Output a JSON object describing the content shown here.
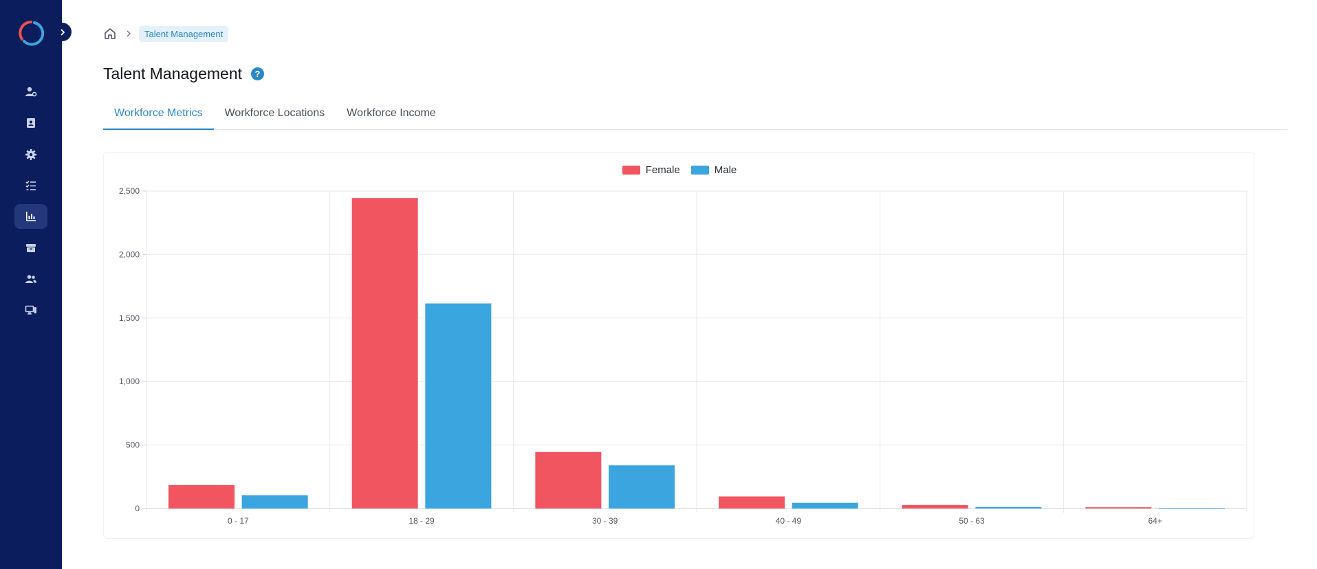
{
  "sidebar": {
    "logo": "logo-ring",
    "expand_icon": "chevron-right-icon",
    "items": [
      {
        "icon": "user-gear-icon",
        "active": false
      },
      {
        "icon": "contact-book-icon",
        "active": false
      },
      {
        "icon": "gear-icon",
        "active": false
      },
      {
        "icon": "checklist-icon",
        "active": false
      },
      {
        "icon": "bar-chart-icon",
        "active": true
      },
      {
        "icon": "box-icon",
        "active": false
      },
      {
        "icon": "users-icon",
        "active": false
      },
      {
        "icon": "devices-icon",
        "active": false
      }
    ]
  },
  "breadcrumb": {
    "home_icon": "home-icon",
    "separator_icon": "chevron-right-icon",
    "current": "Talent Management"
  },
  "header": {
    "title": "Talent Management",
    "help_label": "?"
  },
  "tabs": [
    {
      "label": "Workforce Metrics",
      "active": true
    },
    {
      "label": "Workforce Locations",
      "active": false
    },
    {
      "label": "Workforce Income",
      "active": false
    }
  ],
  "colors": {
    "sidebar_bg": "#0b1d5c",
    "accent": "#2b88c8",
    "female": "#f05560",
    "male": "#3aa5de"
  },
  "chart_data": {
    "type": "bar",
    "categories": [
      "0 - 17",
      "18 - 29",
      "30 - 39",
      "40 - 49",
      "50 - 63",
      "64+"
    ],
    "series": [
      {
        "name": "Female",
        "color": "#f05560",
        "values": [
          185,
          2445,
          445,
          95,
          28,
          10
        ]
      },
      {
        "name": "Male",
        "color": "#3aa5de",
        "values": [
          105,
          1615,
          340,
          45,
          12,
          5
        ]
      }
    ],
    "y_ticks": [
      "0",
      "500",
      "1,000",
      "1,500",
      "2,000",
      "2,500"
    ],
    "ylim": [
      0,
      2500
    ],
    "grid": true,
    "legend_position": "top-center"
  }
}
